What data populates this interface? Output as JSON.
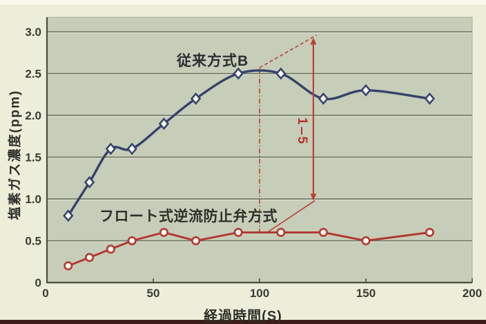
{
  "colors": {
    "page_background": "#edeeda",
    "plot_background": "#c6cdb8",
    "gridline": "#6b7562",
    "gridline_highlight": "#dfe2cd",
    "axis": "#46503f",
    "tick_text": "#3a3c34",
    "series_conventional": "#35426b",
    "series_float": "#b23730",
    "annotation_red": "#bb4035",
    "marker_fill": "#fcfbf4"
  },
  "chart_data": {
    "type": "line",
    "title": "",
    "xlabel": "経過時間(S)",
    "ylabel": "塩素ガス濃度(ppm)",
    "xlim": [
      0,
      200
    ],
    "ylim": [
      0,
      3.0
    ],
    "grid": "horizontal",
    "legend_position": "inline-labels-on-plot",
    "x_ticks": [
      {
        "v": 0,
        "label": "0"
      },
      {
        "v": 50,
        "label": "50"
      },
      {
        "v": 100,
        "label": "100"
      },
      {
        "v": 150,
        "label": "150"
      },
      {
        "v": 200,
        "label": "200"
      }
    ],
    "y_ticks": [
      {
        "v": 0,
        "label": "0"
      },
      {
        "v": 0.5,
        "label": "0.5"
      },
      {
        "v": 1.0,
        "label": "1.0"
      },
      {
        "v": 1.5,
        "label": "1.5"
      },
      {
        "v": 2.0,
        "label": "2.0"
      },
      {
        "v": 2.5,
        "label": "2.5"
      },
      {
        "v": 3.0,
        "label": "3.0"
      }
    ],
    "series": [
      {
        "name": "従来方式B",
        "color": "#35426b",
        "marker": "diamond",
        "smooth": true,
        "x": [
          10,
          20,
          30,
          40,
          55,
          70,
          90,
          110,
          130,
          150,
          180
        ],
        "y": [
          0.8,
          1.2,
          1.6,
          1.6,
          1.9,
          2.2,
          2.5,
          2.5,
          2.2,
          2.3,
          2.2
        ]
      },
      {
        "name": "フロート式逆流防止弁方式",
        "color": "#b23730",
        "marker": "circle",
        "smooth": false,
        "x": [
          10,
          20,
          30,
          40,
          55,
          70,
          90,
          110,
          130,
          150,
          180
        ],
        "y": [
          0.2,
          0.3,
          0.4,
          0.5,
          0.6,
          0.5,
          0.6,
          0.6,
          0.6,
          0.5,
          0.6
        ]
      }
    ],
    "annotation": {
      "ratio_numerator": "1",
      "ratio_denominator": "5",
      "color": "#bb4035",
      "dashdot_vertical": {
        "x": 100,
        "y1": 2.56,
        "y2": 0.6
      },
      "dashed_diagonal": {
        "x1": 100,
        "y1": 2.57,
        "x2": 126.8,
        "y2": 2.96
      },
      "solid_leader": {
        "x1": 103,
        "y1": 0.59,
        "x2": 126,
        "y2": 0.98
      },
      "arrow_span": {
        "x": 125.3,
        "y1": 0.98,
        "y2": 2.93
      }
    }
  }
}
